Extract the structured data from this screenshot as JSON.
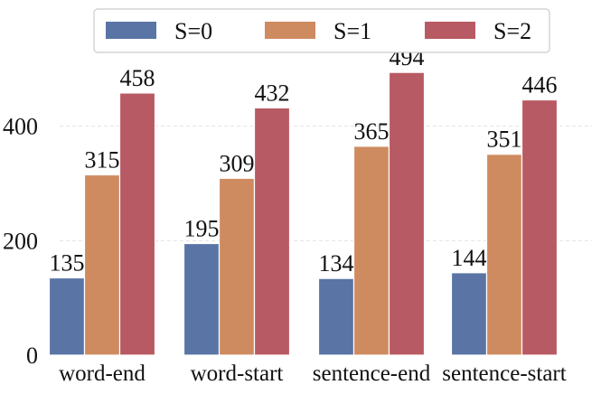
{
  "chart_data": {
    "type": "bar",
    "title": "",
    "xlabel": "",
    "ylabel": "",
    "categories": [
      "word-end",
      "word-start",
      "sentence-end",
      "sentence-start"
    ],
    "series": [
      {
        "name": "S=0",
        "color": "#5a74a5",
        "values": [
          135,
          195,
          134,
          144
        ]
      },
      {
        "name": "S=1",
        "color": "#cf8b60",
        "values": [
          315,
          309,
          365,
          351
        ]
      },
      {
        "name": "S=2",
        "color": "#b85a63",
        "values": [
          458,
          432,
          494,
          446
        ]
      }
    ],
    "ylim": [
      0,
      510
    ],
    "yticks": [
      0,
      200,
      400
    ],
    "grid": true,
    "legend_position": "top-center",
    "data_labels": true
  }
}
